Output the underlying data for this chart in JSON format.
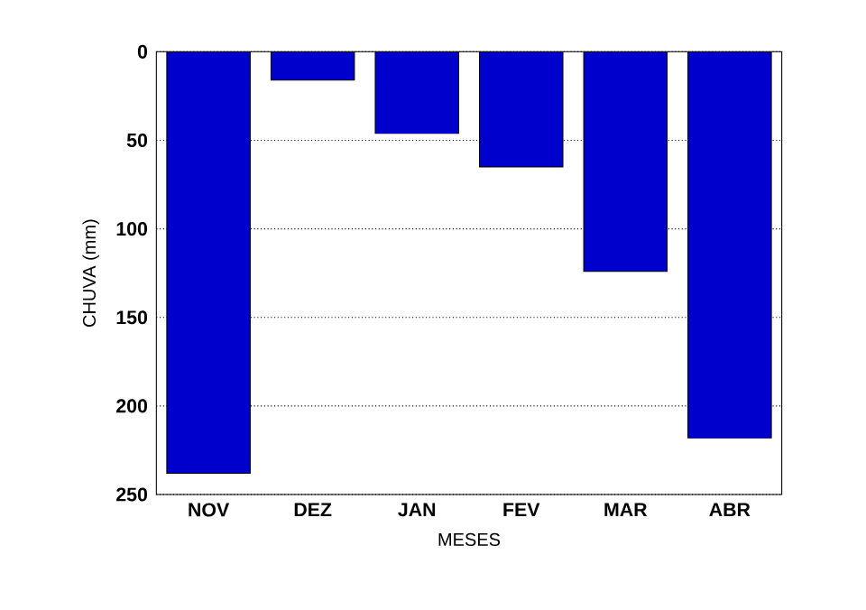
{
  "chart_data": {
    "type": "bar",
    "xlabel": "MESES",
    "ylabel": "CHUVA (mm)",
    "categories": [
      "NOV",
      "DEZ",
      "JAN",
      "FEV",
      "MAR",
      "ABR"
    ],
    "values": [
      238,
      16,
      46,
      65,
      124,
      218
    ],
    "color": "#0000cc",
    "ylim": [
      250,
      0
    ],
    "yticks": [
      0,
      50,
      100,
      150,
      200,
      250
    ],
    "grid": "y"
  }
}
